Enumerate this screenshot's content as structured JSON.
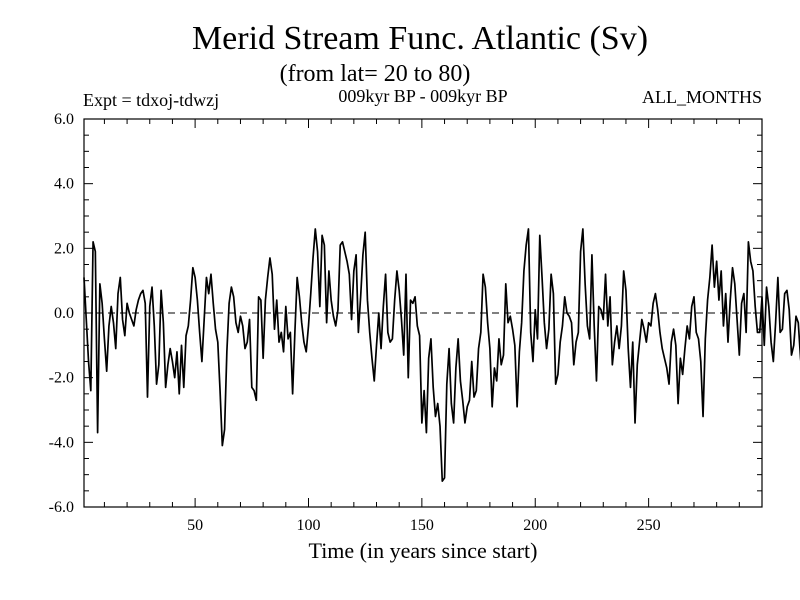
{
  "chart_data": {
    "type": "line",
    "title": "Merid Stream Func. Atlantic (Sv)",
    "subtitle": "(from lat= 20 to 80)",
    "annotations": {
      "left": "Expt = tdxoj-tdwzj",
      "center": "009kyr BP - 009kyr BP",
      "right": "ALL_MONTHS"
    },
    "xlabel": "Time (in years since start)",
    "ylabel": "",
    "xlim": [
      1,
      300
    ],
    "ylim": [
      -6.0,
      6.0
    ],
    "x_ticks": [
      {
        "value": 50,
        "label": "50"
      },
      {
        "value": 100,
        "label": "100"
      },
      {
        "value": 150,
        "label": "150"
      },
      {
        "value": 200,
        "label": "200"
      },
      {
        "value": 250,
        "label": "250"
      }
    ],
    "y_ticks": [
      {
        "value": 6.0,
        "label": "6.0"
      },
      {
        "value": 4.0,
        "label": "4.0"
      },
      {
        "value": 2.0,
        "label": "2.0"
      },
      {
        "value": 0.0,
        "label": "0.0"
      },
      {
        "value": -2.0,
        "label": "-2.0"
      },
      {
        "value": -4.0,
        "label": "-4.0"
      },
      {
        "value": -6.0,
        "label": "-6.0"
      }
    ],
    "zero_line": true,
    "grid": false,
    "series": [
      {
        "x_start": 1,
        "x_step": 1,
        "values": [
          1.1,
          -0.2,
          -1.5,
          -2.4,
          2.2,
          1.9,
          -3.7,
          0.9,
          0.3,
          -0.8,
          -1.8,
          -0.4,
          0.2,
          -0.3,
          -1.1,
          0.6,
          1.1,
          -0.2,
          -0.7,
          0.3,
          0.0,
          -0.2,
          -0.4,
          0.1,
          0.4,
          0.6,
          0.7,
          0.3,
          -2.6,
          0.2,
          0.8,
          -0.4,
          -2.2,
          -1.6,
          0.7,
          -0.3,
          -2.3,
          -1.6,
          -1.1,
          -1.5,
          -2.0,
          -1.2,
          -2.5,
          -1.0,
          -2.3,
          -0.7,
          -0.4,
          0.4,
          1.4,
          1.1,
          0.4,
          -0.6,
          -1.5,
          -0.2,
          1.1,
          0.6,
          1.2,
          0.3,
          -0.5,
          -0.9,
          -2.4,
          -4.1,
          -3.6,
          -1.2,
          0.3,
          0.8,
          0.5,
          -0.3,
          -0.6,
          -0.1,
          -0.4,
          -1.1,
          -0.9,
          -0.2,
          -2.3,
          -2.4,
          -2.7,
          0.5,
          0.4,
          -1.4,
          0.4,
          1.1,
          1.7,
          1.2,
          -0.5,
          0.4,
          -0.9,
          -0.6,
          -1.2,
          0.2,
          -0.8,
          -0.6,
          -2.5,
          -0.6,
          1.1,
          0.5,
          -0.3,
          -0.9,
          -1.2,
          -0.4,
          0.6,
          1.7,
          2.6,
          1.9,
          0.2,
          2.4,
          2.1,
          -0.3,
          1.3,
          0.4,
          -0.1,
          -0.4,
          0.1,
          2.1,
          2.2,
          1.9,
          1.6,
          1.2,
          -0.2,
          1.3,
          1.8,
          -0.6,
          0.5,
          1.8,
          2.5,
          0.4,
          -0.6,
          -1.4,
          -2.1,
          -1.0,
          0.0,
          -1.1,
          0.2,
          1.2,
          -0.6,
          -0.9,
          -0.8,
          0.4,
          1.3,
          0.7,
          -0.2,
          -1.3,
          1.2,
          -2.0,
          0.4,
          0.3,
          0.5,
          -0.4,
          -0.7,
          -3.4,
          -2.4,
          -3.7,
          -1.4,
          -0.8,
          -2.3,
          -3.2,
          -2.8,
          -3.5,
          -5.2,
          -5.1,
          -2.2,
          -1.1,
          -2.8,
          -3.4,
          -1.7,
          -0.8,
          -2.1,
          -2.7,
          -3.4,
          -2.9,
          -2.7,
          -1.5,
          -2.6,
          -2.4,
          -1.1,
          -0.6,
          1.2,
          0.8,
          -0.3,
          -1.1,
          -2.9,
          -1.7,
          -2.1,
          -0.8,
          -1.6,
          -1.3,
          0.9,
          -0.3,
          -0.1,
          -0.5,
          -1.0,
          -2.9,
          -1.2,
          -0.3,
          1.3,
          2.1,
          2.6,
          -0.6,
          -1.5,
          0.1,
          -0.8,
          2.4,
          1.1,
          -0.3,
          -1.1,
          -0.5,
          1.2,
          0.6,
          -2.2,
          -1.9,
          -0.9,
          -0.4,
          0.5,
          0.0,
          -0.1,
          -0.3,
          -1.6,
          -0.9,
          -0.6,
          1.9,
          2.6,
          0.9,
          -0.4,
          -0.8,
          1.8,
          -0.4,
          -2.1,
          0.2,
          0.1,
          -0.2,
          1.2,
          -0.4,
          0.5,
          -1.6,
          -0.9,
          -0.4,
          -1.1,
          -0.4,
          1.3,
          0.7,
          -1.1,
          -2.3,
          -0.9,
          -3.4,
          -1.6,
          -0.9,
          -0.2,
          -0.5,
          -0.9,
          -0.3,
          -0.4,
          0.3,
          0.6,
          0.1,
          -0.6,
          -1.1,
          -1.4,
          -1.7,
          -2.2,
          -0.9,
          -0.5,
          -1.0,
          -2.8,
          -1.4,
          -1.9,
          -1.1,
          -0.4,
          -0.8,
          0.2,
          0.5,
          -0.6,
          -0.8,
          -1.5,
          -3.2,
          -0.8,
          0.4,
          1.1,
          2.1,
          0.8,
          1.6,
          0.4,
          1.3,
          -0.4,
          0.6,
          -0.9,
          0.4,
          1.4,
          0.9,
          -0.2,
          -1.3,
          0.3,
          0.6,
          -0.6,
          2.2,
          1.6,
          1.3,
          0.2,
          -0.6,
          -0.6,
          0.5,
          -1.0,
          0.8,
          0.2,
          -0.9,
          -1.5,
          -0.3,
          1.1,
          -0.6,
          -0.5,
          0.6,
          0.7,
          0.1,
          -1.3,
          -1.0,
          -0.1,
          -0.3,
          -1.4,
          -2.1,
          -1.2,
          -0.4,
          0.7,
          0.9,
          -0.4,
          -0.7,
          -0.9,
          -0.5,
          -1.4,
          -2.8,
          -1.9,
          -0.9,
          -0.5,
          0.1,
          -0.6,
          0.8,
          1.0,
          -0.9,
          1.1,
          0.6,
          1.9,
          1.6,
          2.4,
          3.4,
          3.6,
          4.0,
          2.2,
          1.9,
          2.0,
          2.9,
          2.4,
          3.3,
          2.5,
          0.2,
          1.2,
          0.8
        ]
      }
    ]
  }
}
